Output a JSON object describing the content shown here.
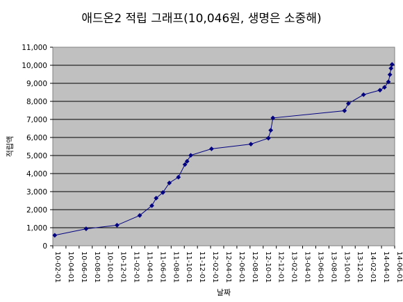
{
  "chart_data": {
    "type": "line",
    "title": "애드온2 적립 그래프(10,046원, 생명은 소중해)",
    "xlabel": "날짜",
    "ylabel": "적립액",
    "ylim": [
      0,
      11000
    ],
    "y_ticks": [
      0,
      1000,
      2000,
      3000,
      4000,
      5000,
      6000,
      7000,
      8000,
      9000,
      10000,
      11000
    ],
    "y_tick_labels": [
      "0",
      "1,000",
      "2,000",
      "3,000",
      "4,000",
      "5,000",
      "6,000",
      "7,000",
      "8,000",
      "9,000",
      "10,000",
      "11,000"
    ],
    "x_tick_labels": [
      "10-02-01",
      "10-04-01",
      "10-06-01",
      "10-08-01",
      "10-10-01",
      "10-12-01",
      "11-02-01",
      "11-04-01",
      "11-06-01",
      "11-08-01",
      "11-10-01",
      "11-12-01",
      "12-02-01",
      "12-04-01",
      "12-06-01",
      "12-08-01",
      "12-10-01",
      "12-12-01",
      "13-02-01",
      "13-04-01",
      "13-06-01",
      "13-08-01",
      "13-10-01",
      "13-12-01",
      "14-02-01",
      "14-04-01",
      "14-06-01"
    ],
    "xlim": [
      "2010-02-01",
      "2014-06-01"
    ],
    "grid": true,
    "series_color": "#000080",
    "plot_background": "#c0c0c0",
    "x": [
      "2010-02-10",
      "2010-07-05",
      "2010-11-25",
      "2011-03-10",
      "2011-05-05",
      "2011-05-25",
      "2011-06-25",
      "2011-07-25",
      "2011-09-05",
      "2011-10-05",
      "2011-10-15",
      "2011-11-01",
      "2012-02-05",
      "2012-08-05",
      "2012-10-25",
      "2012-11-05",
      "2012-11-15",
      "2013-10-12",
      "2013-10-30",
      "2014-01-08",
      "2014-03-25",
      "2014-04-15",
      "2014-05-03",
      "2014-05-10",
      "2014-05-15",
      "2014-05-20"
    ],
    "values": [
      580,
      940,
      1140,
      1680,
      2220,
      2640,
      2950,
      3480,
      3800,
      4500,
      4680,
      5010,
      5370,
      5630,
      5960,
      6400,
      7080,
      7480,
      7880,
      8370,
      8620,
      8780,
      9080,
      9480,
      9830,
      10046
    ]
  }
}
